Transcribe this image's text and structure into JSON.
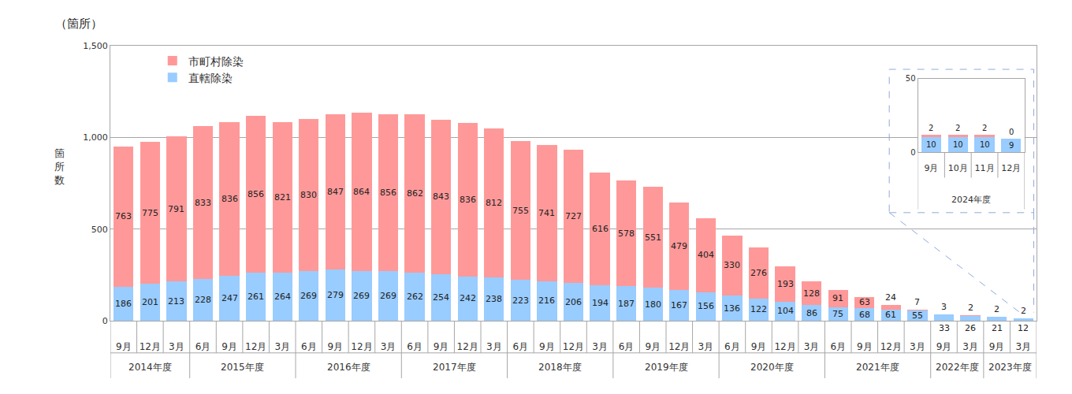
{
  "chart_data": [
    {
      "type": "bar",
      "stacked": true,
      "data_labels": true,
      "grid": true,
      "legend": "upper left",
      "ylabel": "箇所数",
      "annotations": [
        "（箇所）"
      ],
      "categories": [
        "9月",
        "12月",
        "3月",
        "6月",
        "9月",
        "12月",
        "3月",
        "6月",
        "9月",
        "12月",
        "3月",
        "6月",
        "9月",
        "12月",
        "3月",
        "6月",
        "9月",
        "12月",
        "3月",
        "6月",
        "9月",
        "12月",
        "3月",
        "6月",
        "9月",
        "12月",
        "3月",
        "6月",
        "9月",
        "12月",
        "3月",
        "9月",
        "3月",
        "9月",
        "3月"
      ],
      "category_groups": [
        "2014年度",
        "2014年度",
        "2014年度",
        "2015年度",
        "2015年度",
        "2015年度",
        "2015年度",
        "2016年度",
        "2016年度",
        "2016年度",
        "2016年度",
        "2017年度",
        "2017年度",
        "2017年度",
        "2017年度",
        "2018年度",
        "2018年度",
        "2018年度",
        "2018年度",
        "2019年度",
        "2019年度",
        "2019年度",
        "2019年度",
        "2020年度",
        "2020年度",
        "2020年度",
        "2020年度",
        "2021年度",
        "2021年度",
        "2021年度",
        "2021年度",
        "2022年度",
        "2022年度",
        "2023年度",
        "2023年度"
      ],
      "series": [
        {
          "name": "直轄除染",
          "color": "#99CCFF",
          "values": [
            186,
            201,
            213,
            228,
            247,
            261,
            264,
            269,
            279,
            269,
            269,
            262,
            254,
            242,
            238,
            223,
            216,
            206,
            194,
            187,
            180,
            167,
            156,
            136,
            122,
            104,
            86,
            75,
            68,
            61,
            55,
            33,
            26,
            21,
            12
          ]
        },
        {
          "name": "市町村除染",
          "color": "#FF9999",
          "values": [
            763,
            775,
            791,
            833,
            836,
            856,
            821,
            830,
            847,
            864,
            856,
            862,
            843,
            836,
            812,
            755,
            741,
            727,
            616,
            578,
            551,
            479,
            404,
            330,
            276,
            193,
            128,
            91,
            63,
            24,
            7,
            3,
            2,
            2,
            2
          ]
        }
      ],
      "ylim": [
        0,
        1500
      ],
      "yticks": [
        0,
        500,
        {
          "value": 1000,
          "label": "1,000"
        },
        {
          "value": 1500,
          "label": "1,500"
        }
      ]
    },
    {
      "type": "bar",
      "stacked": true,
      "data_labels": true,
      "grid": false,
      "categories": [
        "9月",
        "10月",
        "11月",
        "12月"
      ],
      "category_groups": [
        "2024年度",
        "2024年度",
        "2024年度",
        "2024年度"
      ],
      "series": [
        {
          "name": "直轄除染",
          "color": "#99CCFF",
          "values": [
            10,
            10,
            10,
            9
          ]
        },
        {
          "name": "市町村除染",
          "color": "#FF9999",
          "values": [
            2,
            2,
            2,
            0
          ]
        }
      ],
      "ylim": [
        0,
        50
      ],
      "yticks": [
        0,
        50
      ]
    }
  ]
}
